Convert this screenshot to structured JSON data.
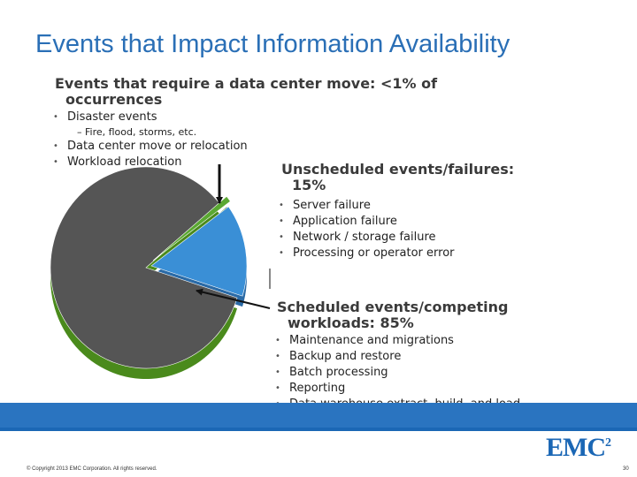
{
  "slide": {
    "title": "Events that Impact Information Availability",
    "copyright": "© Copyright 2013 EMC Corporation. All rights reserved.",
    "page_number": "30",
    "logo": "EMC",
    "logo_sup": "2"
  },
  "sections": {
    "data_center_move": {
      "heading_line1": "Events that require a data center move: <1% of",
      "heading_line2": "occurrences",
      "items": [
        "Disaster events",
        "Data center move or relocation",
        "Workload relocation"
      ],
      "sub_items": [
        "– Fire, flood, storms, etc."
      ]
    },
    "unscheduled": {
      "heading_line1": "Unscheduled events/failures:",
      "heading_line2": "15%",
      "items": [
        "Server failure",
        "Application failure",
        "Network / storage failure",
        "Processing or operator error"
      ]
    },
    "scheduled": {
      "heading_line1": "Scheduled events/competing",
      "heading_line2": "workloads: 85%",
      "items": [
        "Maintenance and migrations",
        "Backup and restore",
        "Batch processing",
        "Reporting",
        "Data warehouse extract, build, and load"
      ]
    }
  },
  "chart_data": {
    "type": "pie",
    "style": "3d",
    "slices": [
      {
        "value": 85,
        "color": "#555555",
        "side_color": "#4a8a1c"
      },
      {
        "value": 15,
        "color": "#3a8fd6",
        "side_color": "#2a6aa6"
      },
      {
        "value": 1,
        "color": "#5aa832",
        "side_color": "#3f7a22"
      }
    ]
  }
}
